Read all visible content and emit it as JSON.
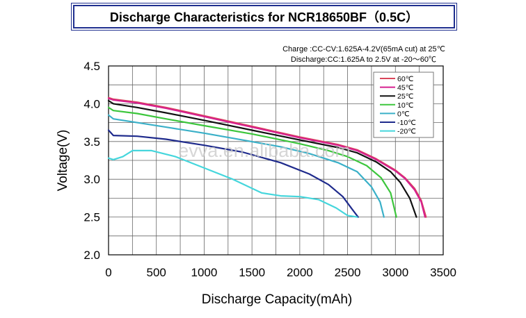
{
  "title": "Discharge Characteristics for NCR18650BF（0.5C）",
  "chart_data": {
    "type": "line",
    "title": "Discharge Characteristics for NCR18650BF（0.5C）",
    "xlabel": "Discharge Capacity(mAh)",
    "ylabel": "Voltage(V)",
    "xlim": [
      0,
      3500
    ],
    "ylim": [
      2.0,
      4.5
    ],
    "xticks": [
      "0",
      "500",
      "1000",
      "1500",
      "2000",
      "2500",
      "3000",
      "3500"
    ],
    "yticks": [
      "2.0",
      "2.5",
      "3.0",
      "3.5",
      "4.0",
      "4.5"
    ],
    "grid": true,
    "legend_position": "top-right",
    "annotations": [
      "Charge :CC-CV:1.625A-4.2V(65mA cut) at 25℃",
      "Discharge:CC:1.625A to 2.5V at -20～60℃"
    ],
    "watermark": "evva.en.alibaba.com",
    "series": [
      {
        "name": "60℃",
        "color": "#d9455a",
        "points": [
          [
            0,
            4.08
          ],
          [
            50,
            4.06
          ],
          [
            300,
            4.02
          ],
          [
            600,
            3.95
          ],
          [
            1000,
            3.84
          ],
          [
            1500,
            3.7
          ],
          [
            2000,
            3.56
          ],
          [
            2400,
            3.46
          ],
          [
            2600,
            3.39
          ],
          [
            2800,
            3.27
          ],
          [
            3000,
            3.12
          ],
          [
            3100,
            3.02
          ],
          [
            3200,
            2.88
          ],
          [
            3270,
            2.72
          ],
          [
            3320,
            2.5
          ]
        ]
      },
      {
        "name": "45℃",
        "color": "#d6208f",
        "points": [
          [
            0,
            4.07
          ],
          [
            50,
            4.05
          ],
          [
            300,
            4.01
          ],
          [
            600,
            3.94
          ],
          [
            1000,
            3.83
          ],
          [
            1500,
            3.69
          ],
          [
            2000,
            3.55
          ],
          [
            2400,
            3.45
          ],
          [
            2600,
            3.38
          ],
          [
            2800,
            3.26
          ],
          [
            3000,
            3.11
          ],
          [
            3100,
            3.01
          ],
          [
            3200,
            2.86
          ],
          [
            3270,
            2.7
          ],
          [
            3310,
            2.5
          ]
        ]
      },
      {
        "name": "25℃",
        "color": "#111111",
        "points": [
          [
            0,
            4.04
          ],
          [
            50,
            4.0
          ],
          [
            300,
            3.95
          ],
          [
            600,
            3.88
          ],
          [
            1000,
            3.78
          ],
          [
            1500,
            3.65
          ],
          [
            2000,
            3.52
          ],
          [
            2400,
            3.42
          ],
          [
            2600,
            3.35
          ],
          [
            2800,
            3.23
          ],
          [
            2950,
            3.1
          ],
          [
            3050,
            2.96
          ],
          [
            3150,
            2.75
          ],
          [
            3220,
            2.5
          ]
        ]
      },
      {
        "name": "10℃",
        "color": "#3cc63c",
        "points": [
          [
            0,
            3.95
          ],
          [
            50,
            3.91
          ],
          [
            300,
            3.87
          ],
          [
            600,
            3.8
          ],
          [
            1000,
            3.71
          ],
          [
            1500,
            3.6
          ],
          [
            2000,
            3.47
          ],
          [
            2300,
            3.38
          ],
          [
            2500,
            3.3
          ],
          [
            2700,
            3.18
          ],
          [
            2850,
            3.02
          ],
          [
            2950,
            2.82
          ],
          [
            3010,
            2.5
          ]
        ]
      },
      {
        "name": "0℃",
        "color": "#3ab0c8",
        "points": [
          [
            0,
            3.85
          ],
          [
            50,
            3.8
          ],
          [
            300,
            3.75
          ],
          [
            600,
            3.69
          ],
          [
            1000,
            3.61
          ],
          [
            1400,
            3.52
          ],
          [
            1800,
            3.43
          ],
          [
            2100,
            3.34
          ],
          [
            2400,
            3.22
          ],
          [
            2600,
            3.1
          ],
          [
            2750,
            2.9
          ],
          [
            2840,
            2.7
          ],
          [
            2880,
            2.5
          ]
        ]
      },
      {
        "name": "-10℃",
        "color": "#1e2a8c",
        "points": [
          [
            0,
            3.65
          ],
          [
            50,
            3.58
          ],
          [
            300,
            3.57
          ],
          [
            600,
            3.53
          ],
          [
            1000,
            3.45
          ],
          [
            1400,
            3.36
          ],
          [
            1800,
            3.22
          ],
          [
            2100,
            3.07
          ],
          [
            2300,
            2.93
          ],
          [
            2450,
            2.77
          ],
          [
            2550,
            2.6
          ],
          [
            2610,
            2.5
          ]
        ]
      },
      {
        "name": "-20℃",
        "color": "#45d6dc",
        "points": [
          [
            0,
            3.28
          ],
          [
            50,
            3.26
          ],
          [
            150,
            3.3
          ],
          [
            250,
            3.38
          ],
          [
            450,
            3.38
          ],
          [
            700,
            3.3
          ],
          [
            1000,
            3.15
          ],
          [
            1300,
            3.0
          ],
          [
            1600,
            2.82
          ],
          [
            1800,
            2.78
          ],
          [
            2000,
            2.77
          ],
          [
            2200,
            2.73
          ],
          [
            2380,
            2.62
          ],
          [
            2500,
            2.52
          ],
          [
            2600,
            2.5
          ]
        ]
      }
    ]
  }
}
